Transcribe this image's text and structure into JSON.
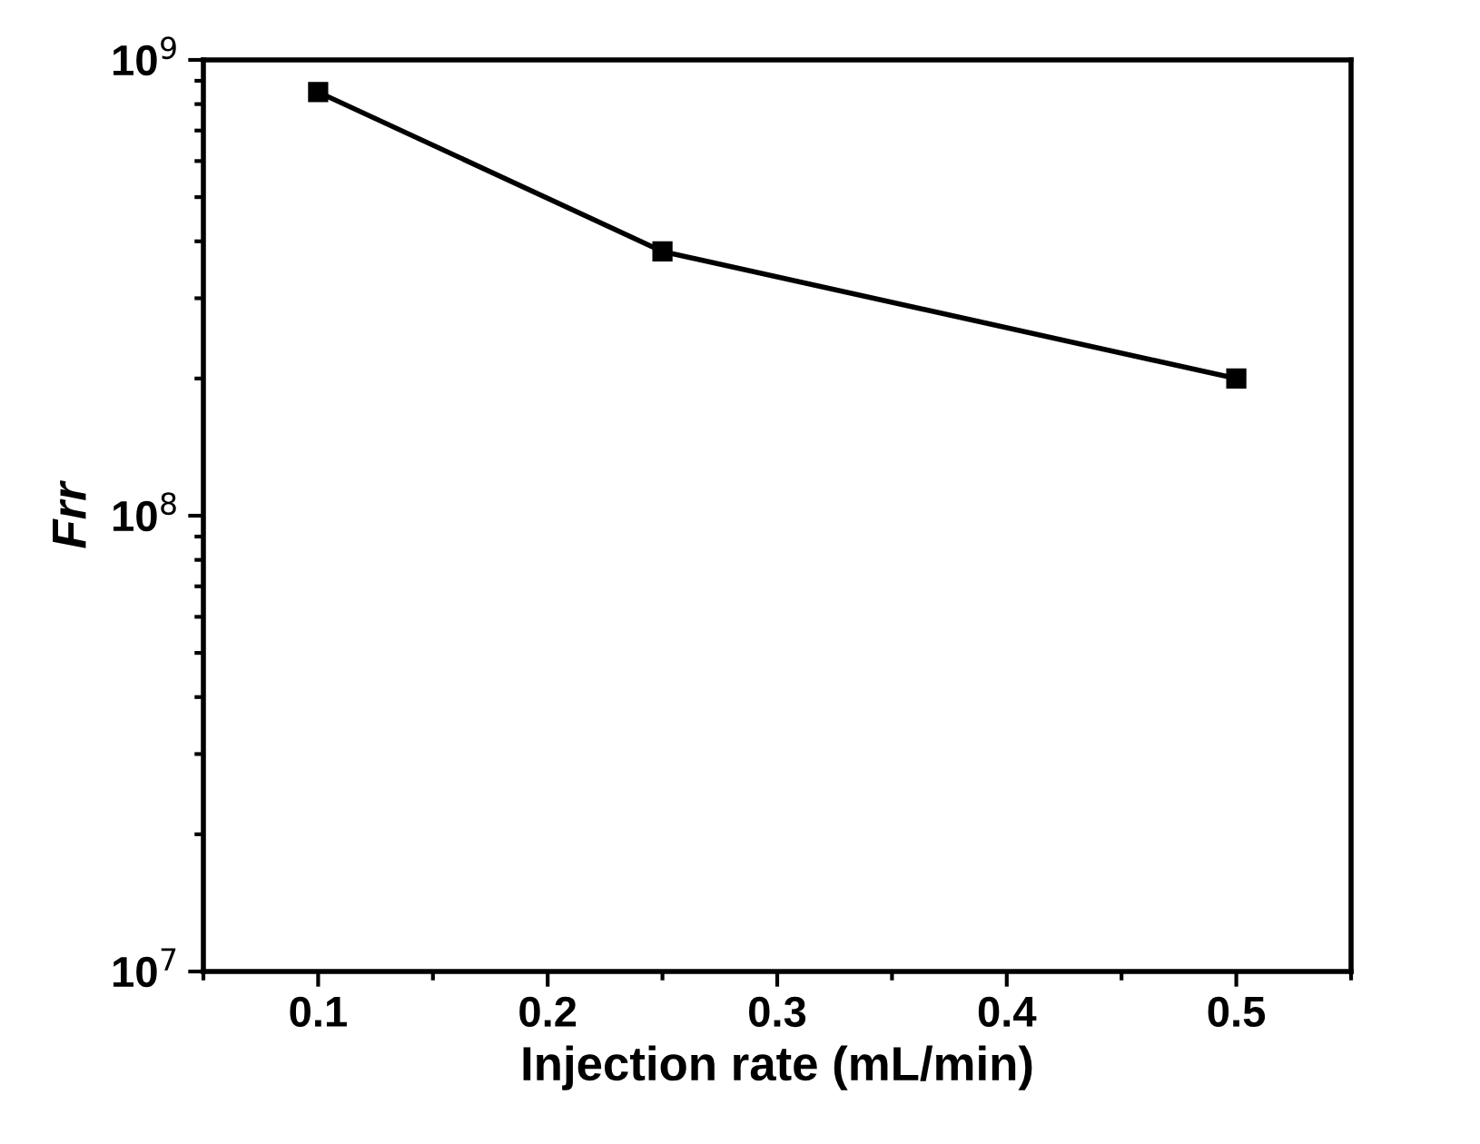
{
  "chart_data": {
    "type": "line",
    "xlabel": "Injection rate (mL/min)",
    "ylabel": "Frr",
    "x": [
      0.1,
      0.25,
      0.5
    ],
    "series": [
      {
        "color": "#000000",
        "values": [
          850000000.0,
          380000000.0,
          200000000.0
        ]
      }
    ],
    "log": "y",
    "marker": "square",
    "line_style": "solid",
    "grid": false,
    "legend": false,
    "xlim": [
      0.05,
      0.55
    ],
    "xticks": [
      {
        "value": 0.05,
        "label": null
      },
      0.1,
      {
        "value": 0.15,
        "label": null
      },
      0.2,
      {
        "value": 0.25,
        "label": null
      },
      0.3,
      {
        "value": 0.35,
        "label": null
      },
      0.4,
      {
        "value": 0.45,
        "label": null
      },
      0.5,
      {
        "value": 0.55,
        "label": null
      }
    ],
    "ylim": [
      10000000.0,
      1000000000.0
    ],
    "yticks": [
      {
        "value": 10000000.0,
        "label": "10$^{7}$"
      },
      {
        "value": 20000000.0,
        "label": null
      },
      {
        "value": 30000000.0,
        "label": null
      },
      {
        "value": 40000000.0,
        "label": null
      },
      {
        "value": 50000000.0,
        "label": null
      },
      {
        "value": 60000000.0,
        "label": null
      },
      {
        "value": 70000000.0,
        "label": null
      },
      {
        "value": 80000000.0,
        "label": null
      },
      {
        "value": 90000000.0,
        "label": null
      },
      {
        "value": 100000000.0,
        "label": "10$^{8}$"
      },
      {
        "value": 200000000.0,
        "label": null
      },
      {
        "value": 300000000.0,
        "label": null
      },
      {
        "value": 400000000.0,
        "label": null
      },
      {
        "value": 500000000.0,
        "label": null
      },
      {
        "value": 600000000.0,
        "label": null
      },
      {
        "value": 700000000.0,
        "label": null
      },
      {
        "value": 800000000.0,
        "label": null
      },
      {
        "value": 900000000.0,
        "label": null
      },
      {
        "value": 1000000000.0,
        "label": "10$^{9}$"
      }
    ]
  }
}
